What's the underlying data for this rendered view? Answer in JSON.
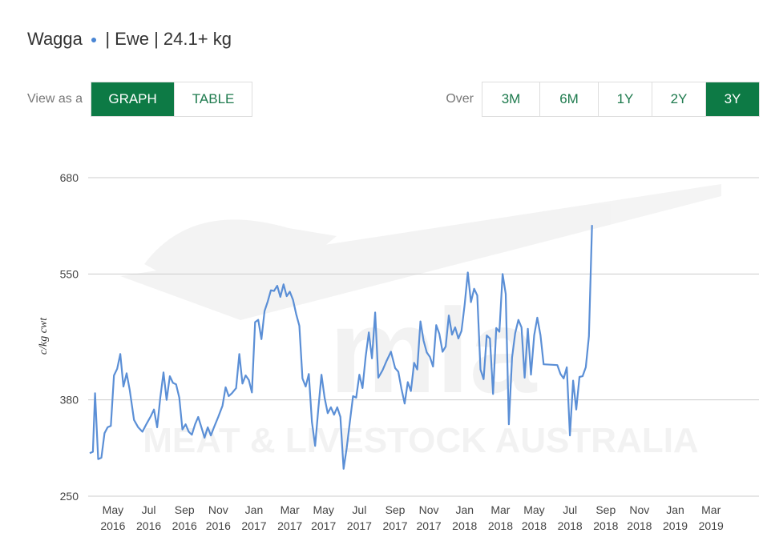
{
  "header": {
    "location": "Wagga",
    "dot": "●",
    "rest": "| Ewe | 24.1+ kg"
  },
  "view_toggle": {
    "label": "View as a",
    "options": [
      "GRAPH",
      "TABLE"
    ],
    "active": "GRAPH"
  },
  "range_toggle": {
    "label": "Over",
    "options": [
      "3M",
      "6M",
      "1Y",
      "2Y",
      "3Y"
    ],
    "active": "3Y"
  },
  "colors": {
    "accent": "#0d7a45",
    "line": "#5b8fd6",
    "grid": "#cccccc"
  },
  "watermark": {
    "text": "MEAT & LIVESTOCK AUSTRALIA",
    "logo": "mla"
  },
  "chart_data": {
    "type": "line",
    "ylabel": "c/kg cwt",
    "ylim": [
      250,
      680
    ],
    "yticks": [
      250,
      380,
      550,
      680
    ],
    "x_ticks": [
      {
        "month": "May",
        "year": "2016",
        "x": 2016.33
      },
      {
        "month": "Jul",
        "year": "2016",
        "x": 2016.5
      },
      {
        "month": "Sep",
        "year": "2016",
        "x": 2016.67
      },
      {
        "month": "Nov",
        "year": "2016",
        "x": 2016.83
      },
      {
        "month": "Jan",
        "year": "2017",
        "x": 2017.0
      },
      {
        "month": "Mar",
        "year": "2017",
        "x": 2017.17
      },
      {
        "month": "May",
        "year": "2017",
        "x": 2017.33
      },
      {
        "month": "Jul",
        "year": "2017",
        "x": 2017.5
      },
      {
        "month": "Sep",
        "year": "2017",
        "x": 2017.67
      },
      {
        "month": "Nov",
        "year": "2017",
        "x": 2017.83
      },
      {
        "month": "Jan",
        "year": "2018",
        "x": 2018.0
      },
      {
        "month": "Mar",
        "year": "2018",
        "x": 2018.17
      },
      {
        "month": "May",
        "year": "2018",
        "x": 2018.33
      },
      {
        "month": "Jul",
        "year": "2018",
        "x": 2018.5
      },
      {
        "month": "Sep",
        "year": "2018",
        "x": 2018.67
      },
      {
        "month": "Nov",
        "year": "2018",
        "x": 2018.83
      },
      {
        "month": "Jan",
        "year": "2019",
        "x": 2019.0
      },
      {
        "month": "Mar",
        "year": "2019",
        "x": 2019.17
      }
    ],
    "xlim": [
      2016.22,
      2019.31
    ],
    "series": [
      {
        "values": [
          [
            2016.22,
            308
          ],
          [
            2016.235,
            310
          ],
          [
            2016.245,
            389
          ],
          [
            2016.26,
            300
          ],
          [
            2016.275,
            302
          ],
          [
            2016.29,
            335
          ],
          [
            2016.305,
            343
          ],
          [
            2016.32,
            345
          ],
          [
            2016.335,
            413
          ],
          [
            2016.35,
            422
          ],
          [
            2016.365,
            442
          ],
          [
            2016.38,
            398
          ],
          [
            2016.395,
            416
          ],
          [
            2016.41,
            393
          ],
          [
            2016.43,
            353
          ],
          [
            2016.45,
            343
          ],
          [
            2016.47,
            337
          ],
          [
            2016.49,
            348
          ],
          [
            2016.51,
            358
          ],
          [
            2016.525,
            367
          ],
          [
            2016.54,
            343
          ],
          [
            2016.555,
            383
          ],
          [
            2016.57,
            417
          ],
          [
            2016.585,
            380
          ],
          [
            2016.6,
            412
          ],
          [
            2016.615,
            403
          ],
          [
            2016.63,
            401
          ],
          [
            2016.645,
            383
          ],
          [
            2016.66,
            340
          ],
          [
            2016.675,
            347
          ],
          [
            2016.69,
            337
          ],
          [
            2016.705,
            333
          ],
          [
            2016.72,
            347
          ],
          [
            2016.735,
            357
          ],
          [
            2016.75,
            343
          ],
          [
            2016.765,
            329
          ],
          [
            2016.78,
            343
          ],
          [
            2016.795,
            332
          ],
          [
            2016.81,
            343
          ],
          [
            2016.83,
            357
          ],
          [
            2016.85,
            372
          ],
          [
            2016.865,
            397
          ],
          [
            2016.88,
            385
          ],
          [
            2016.895,
            389
          ],
          [
            2016.915,
            396
          ],
          [
            2016.93,
            442
          ],
          [
            2016.945,
            402
          ],
          [
            2016.96,
            413
          ],
          [
            2016.975,
            407
          ],
          [
            2016.99,
            390
          ],
          [
            2017.005,
            485
          ],
          [
            2017.02,
            488
          ],
          [
            2017.035,
            462
          ],
          [
            2017.05,
            500
          ],
          [
            2017.065,
            513
          ],
          [
            2017.08,
            528
          ],
          [
            2017.095,
            527
          ],
          [
            2017.11,
            534
          ],
          [
            2017.125,
            519
          ],
          [
            2017.14,
            536
          ],
          [
            2017.155,
            520
          ],
          [
            2017.17,
            526
          ],
          [
            2017.185,
            515
          ],
          [
            2017.2,
            496
          ],
          [
            2017.215,
            480
          ],
          [
            2017.23,
            409
          ],
          [
            2017.245,
            398
          ],
          [
            2017.26,
            415
          ],
          [
            2017.275,
            350
          ],
          [
            2017.29,
            318
          ],
          [
            2017.305,
            367
          ],
          [
            2017.32,
            414
          ],
          [
            2017.335,
            383
          ],
          [
            2017.35,
            362
          ],
          [
            2017.365,
            370
          ],
          [
            2017.38,
            360
          ],
          [
            2017.395,
            370
          ],
          [
            2017.41,
            357
          ],
          [
            2017.425,
            287
          ],
          [
            2017.44,
            315
          ],
          [
            2017.455,
            350
          ],
          [
            2017.47,
            385
          ],
          [
            2017.485,
            383
          ],
          [
            2017.5,
            414
          ],
          [
            2017.515,
            396
          ],
          [
            2017.53,
            438
          ],
          [
            2017.545,
            471
          ],
          [
            2017.56,
            436
          ],
          [
            2017.575,
            498
          ],
          [
            2017.59,
            410
          ],
          [
            2017.61,
            420
          ],
          [
            2017.63,
            433
          ],
          [
            2017.65,
            445
          ],
          [
            2017.67,
            423
          ],
          [
            2017.685,
            418
          ],
          [
            2017.7,
            395
          ],
          [
            2017.715,
            375
          ],
          [
            2017.73,
            404
          ],
          [
            2017.745,
            392
          ],
          [
            2017.76,
            430
          ],
          [
            2017.775,
            421
          ],
          [
            2017.79,
            486
          ],
          [
            2017.805,
            460
          ],
          [
            2017.82,
            444
          ],
          [
            2017.835,
            438
          ],
          [
            2017.85,
            425
          ],
          [
            2017.865,
            481
          ],
          [
            2017.88,
            469
          ],
          [
            2017.895,
            445
          ],
          [
            2017.91,
            452
          ],
          [
            2017.925,
            494
          ],
          [
            2017.94,
            468
          ],
          [
            2017.955,
            478
          ],
          [
            2017.97,
            463
          ],
          [
            2017.985,
            473
          ],
          [
            2018.0,
            509
          ],
          [
            2018.015,
            552
          ],
          [
            2018.03,
            512
          ],
          [
            2018.045,
            530
          ],
          [
            2018.06,
            521
          ],
          [
            2018.075,
            421
          ],
          [
            2018.09,
            408
          ],
          [
            2018.105,
            467
          ],
          [
            2018.12,
            463
          ],
          [
            2018.135,
            388
          ],
          [
            2018.15,
            477
          ],
          [
            2018.165,
            472
          ],
          [
            2018.18,
            550
          ],
          [
            2018.195,
            523
          ],
          [
            2018.21,
            347
          ],
          [
            2018.225,
            437
          ],
          [
            2018.24,
            470
          ],
          [
            2018.255,
            488
          ],
          [
            2018.27,
            478
          ],
          [
            2018.285,
            410
          ],
          [
            2018.3,
            476
          ],
          [
            2018.315,
            414
          ],
          [
            2018.33,
            467
          ],
          [
            2018.345,
            491
          ],
          [
            2018.36,
            467
          ],
          [
            2018.375,
            428
          ],
          [
            2018.44,
            427
          ],
          [
            2018.455,
            415
          ],
          [
            2018.47,
            409
          ],
          [
            2018.485,
            424
          ],
          [
            2018.5,
            332
          ],
          [
            2018.515,
            406
          ],
          [
            2018.53,
            367
          ],
          [
            2018.545,
            411
          ],
          [
            2018.56,
            412
          ],
          [
            2018.575,
            424
          ],
          [
            2018.59,
            466
          ],
          [
            2018.605,
            616
          ]
        ]
      }
    ]
  }
}
